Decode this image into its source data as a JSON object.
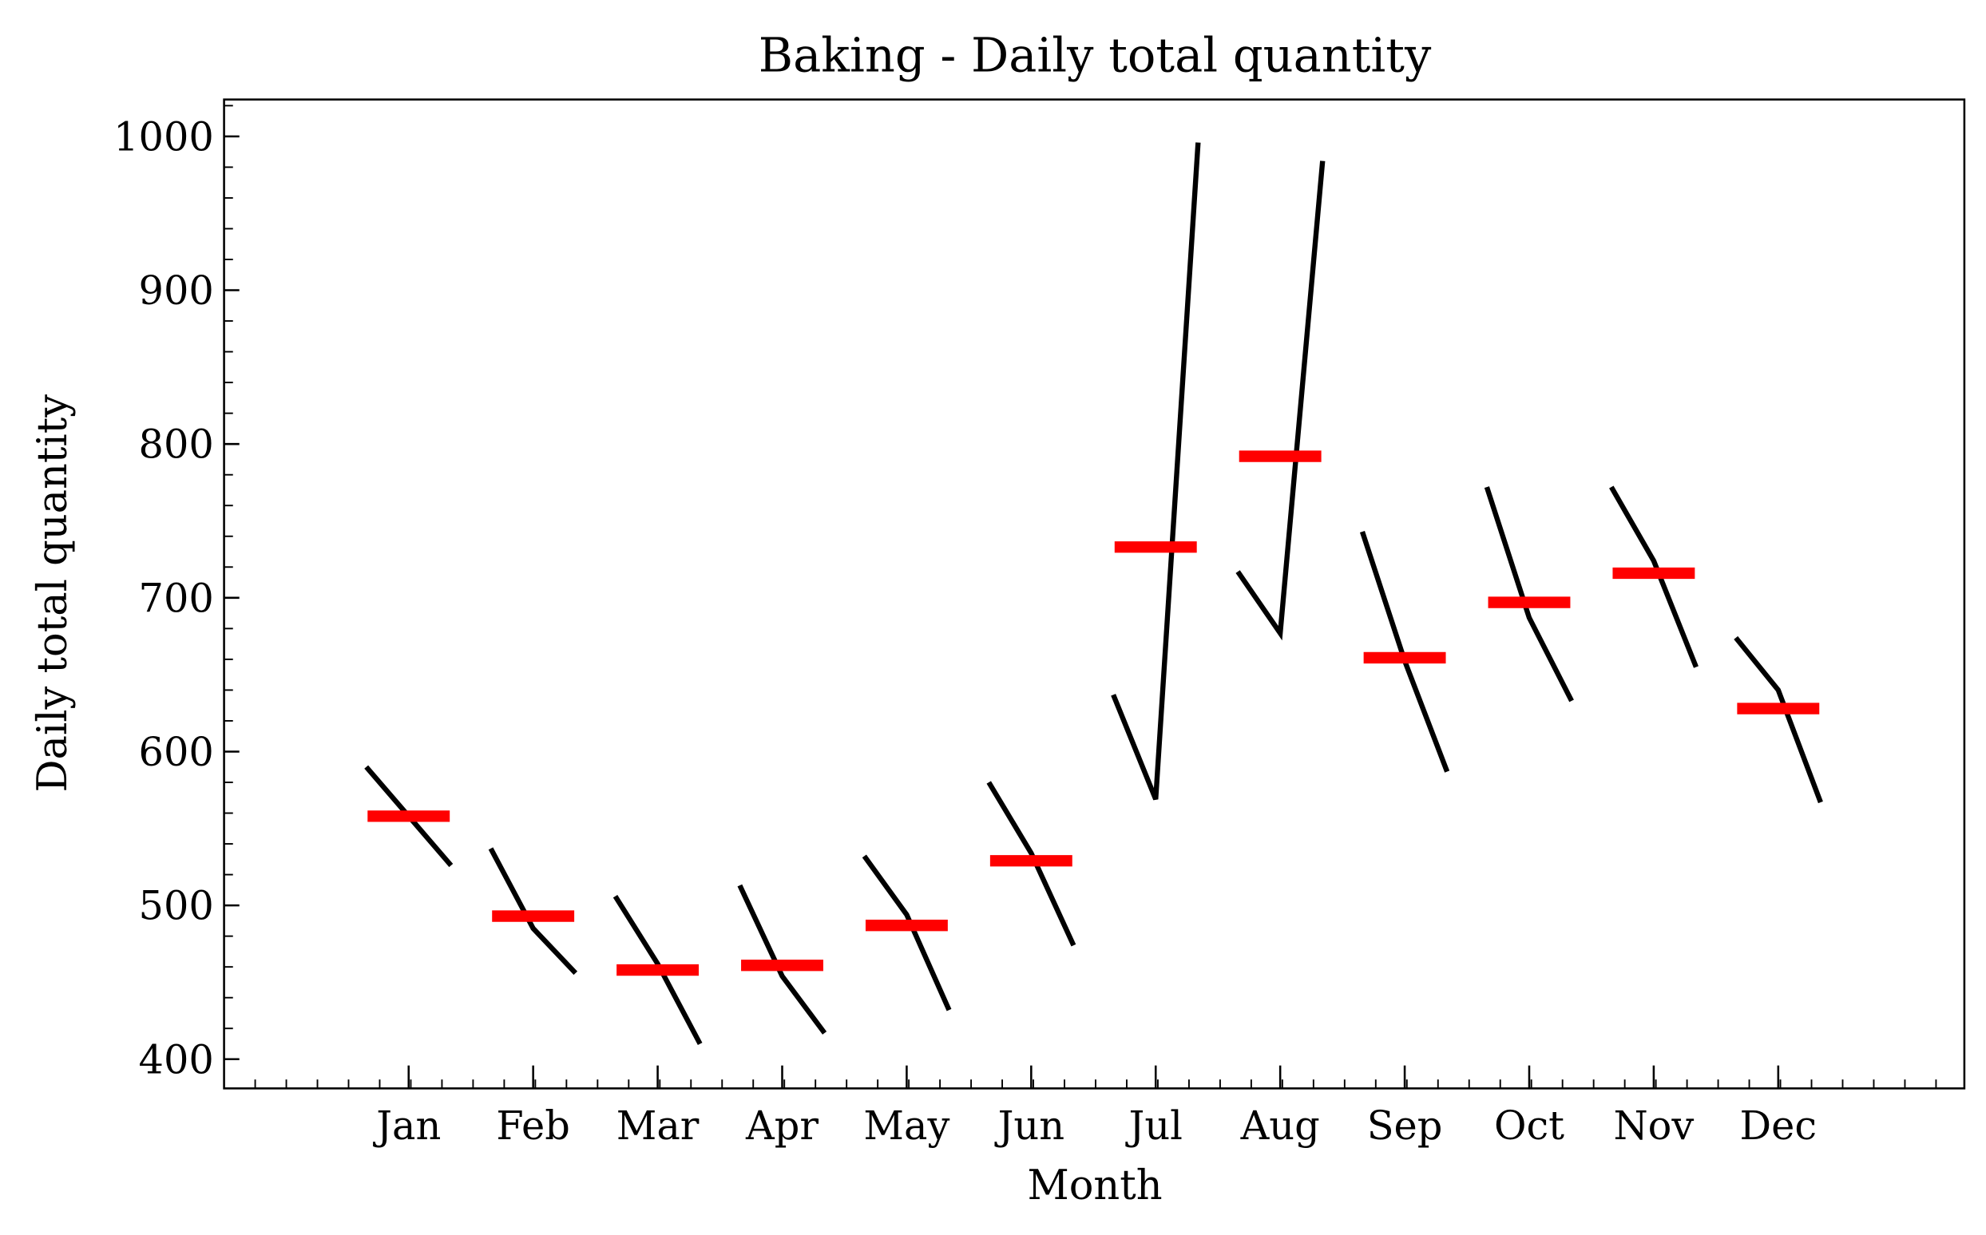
{
  "chart_data": {
    "type": "month_plot",
    "title": "Baking - Daily total quantity",
    "xlabel": "Month",
    "ylabel": "Daily total quantity",
    "categories": [
      "Jan",
      "Feb",
      "Mar",
      "Apr",
      "May",
      "Jun",
      "Jul",
      "Aug",
      "Sep",
      "Oct",
      "Nov",
      "Dec"
    ],
    "subseries": [
      [
        590,
        558,
        526
      ],
      [
        537,
        485,
        456
      ],
      [
        506,
        462,
        410
      ],
      [
        513,
        454,
        417
      ],
      [
        532,
        494,
        432
      ],
      [
        580,
        534,
        474
      ],
      [
        637,
        569,
        996
      ],
      [
        717,
        677,
        984
      ],
      [
        743,
        659,
        587
      ],
      [
        772,
        687,
        633
      ],
      [
        772,
        724,
        655
      ],
      [
        674,
        640,
        567
      ]
    ],
    "means": [
      558,
      493,
      458,
      461,
      487,
      529,
      733,
      792,
      661,
      697,
      716,
      628
    ],
    "line_color": "#000000",
    "mean_color": "#ff0000",
    "ylim": [
      381,
      1024
    ],
    "yticks": [
      400,
      500,
      600,
      700,
      800,
      900,
      1000
    ]
  }
}
